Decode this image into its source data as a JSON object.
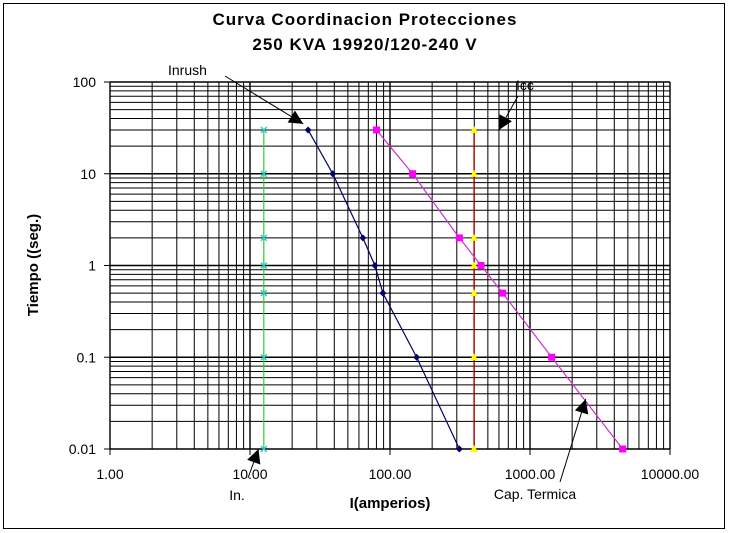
{
  "chart_data": {
    "type": "line",
    "title": "Curva Coordinacion Protecciones",
    "subtitle": "250 KVA 19920/120-240 V",
    "xlabel": "I(amperios)",
    "ylabel": "Tiempo ((seg.)",
    "xscale": "log",
    "yscale": "log",
    "xlim": [
      1,
      10000
    ],
    "ylim": [
      0.01,
      100
    ],
    "xticks": [
      "1.00",
      "10.00",
      "100.00",
      "1000.00",
      "10000.00"
    ],
    "yticks": [
      "100",
      "10",
      "1",
      "0.1",
      "0.01"
    ],
    "grid": true,
    "series": [
      {
        "name": "In.",
        "color": "#33cc33",
        "marker_color": "#33cccc",
        "marker": "x",
        "x": [
          12.55,
          12.55,
          12.55,
          12.55,
          12.55,
          12.55,
          12.55
        ],
        "y": [
          30,
          10,
          2,
          1,
          0.5,
          0.1,
          0.01
        ]
      },
      {
        "name": "Inrush",
        "color": "#000066",
        "marker_color": "#000066",
        "marker": "diamond",
        "x": [
          26,
          39,
          64,
          78,
          89,
          155,
          313
        ],
        "y": [
          30,
          10,
          2,
          1,
          0.5,
          0.1,
          0.01
        ]
      },
      {
        "name": "Icc",
        "color": "#cc0000",
        "marker_color": "#ffff00",
        "marker": "triangle",
        "x": [
          398,
          398,
          398,
          398,
          398,
          398,
          398
        ],
        "y": [
          30,
          10,
          2,
          1,
          0.5,
          0.1,
          0.01
        ]
      },
      {
        "name": "Cap. Termica",
        "color": "#cc33cc",
        "marker_color": "#ff00ff",
        "marker": "square",
        "x": [
          80,
          145,
          313,
          447,
          638,
          1429,
          4592
        ],
        "y": [
          30,
          10,
          2,
          1,
          0.5,
          0.1,
          0.01
        ]
      }
    ],
    "annotations": [
      {
        "text": "Inrush",
        "points_to": [
          24,
          35
        ]
      },
      {
        "text": "Icc",
        "points_to": [
          600,
          30
        ]
      },
      {
        "text": "In.",
        "points_to": [
          11.5,
          0.01
        ]
      },
      {
        "text": "Cap. Termica",
        "points_to": [
          2500,
          0.035
        ]
      }
    ]
  }
}
